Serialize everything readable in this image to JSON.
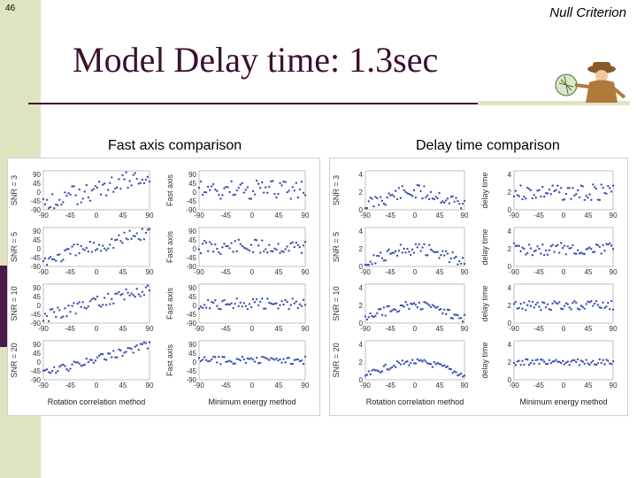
{
  "slide": {
    "page_number": "46",
    "header_label": "Null Criterion",
    "title": "Model Delay time: 1.3sec"
  },
  "left_figure": {
    "caption": "Fast axis comparison",
    "rows": [
      {
        "y_label_left": "SNR = 3",
        "y_label_right": "Fast axis"
      },
      {
        "y_label_left": "SNR = 5",
        "y_label_right": "Fast axis"
      },
      {
        "y_label_left": "SNR = 10",
        "y_label_right": "Fast axis"
      },
      {
        "y_label_left": "SNR = 20",
        "y_label_right": "Fast axis"
      }
    ],
    "y_ticks": [
      "90",
      "45",
      "0",
      "-45",
      "-90"
    ],
    "x_ticks": [
      "-90",
      "-45",
      "0",
      "45",
      "90"
    ],
    "xlabel_left": "Rotation correlation method",
    "xlabel_right": "Minimum energy method"
  },
  "right_figure": {
    "caption": "Delay time comparison",
    "rows": [
      {
        "y_label_left": "SNR = 3",
        "y_label_right": "delay time"
      },
      {
        "y_label_left": "SNR = 5",
        "y_label_right": "delay time"
      },
      {
        "y_label_left": "SNR = 10",
        "y_label_right": "delay time"
      },
      {
        "y_label_left": "SNR = 20",
        "y_label_right": "delay time"
      }
    ],
    "y_ticks": [
      "4",
      "2",
      "0"
    ],
    "x_ticks": [
      "-90",
      "-45",
      "0",
      "45",
      "90"
    ],
    "xlabel_left": "Rotation correlation method",
    "xlabel_right": "Minimum energy method"
  },
  "colors": {
    "sidebar": "#dfe3bf",
    "accent": "#3b1030",
    "marker": "#3d4fb0"
  }
}
